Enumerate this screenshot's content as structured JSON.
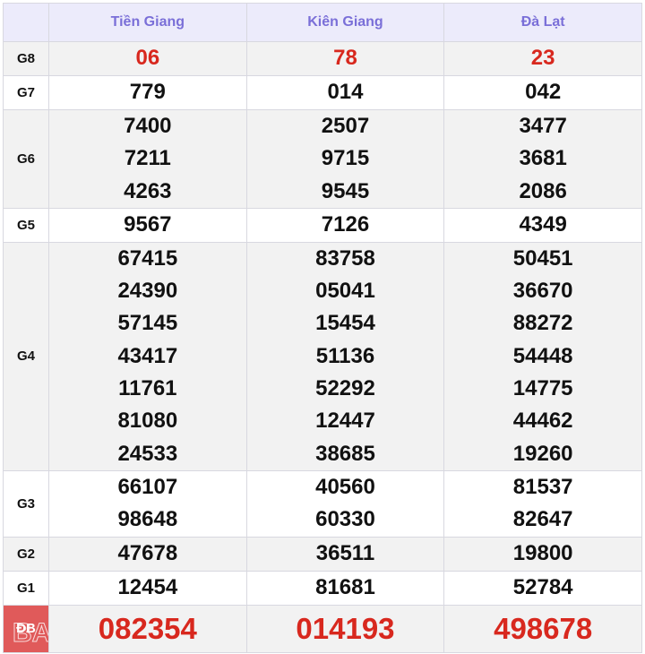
{
  "provinces": [
    "Tiền Giang",
    "Kiên Giang",
    "Đà Lạt"
  ],
  "rows": [
    {
      "label": "G8",
      "values": [
        [
          "06"
        ],
        [
          "78"
        ],
        [
          "23"
        ]
      ]
    },
    {
      "label": "G7",
      "values": [
        [
          "779"
        ],
        [
          "014"
        ],
        [
          "042"
        ]
      ]
    },
    {
      "label": "G6",
      "values": [
        [
          "7400",
          "7211",
          "4263"
        ],
        [
          "2507",
          "9715",
          "9545"
        ],
        [
          "3477",
          "3681",
          "2086"
        ]
      ]
    },
    {
      "label": "G5",
      "values": [
        [
          "9567"
        ],
        [
          "7126"
        ],
        [
          "4349"
        ]
      ]
    },
    {
      "label": "G4",
      "values": [
        [
          "67415",
          "24390",
          "57145",
          "43417",
          "11761",
          "81080",
          "24533"
        ],
        [
          "83758",
          "05041",
          "15454",
          "51136",
          "52292",
          "12447",
          "38685"
        ],
        [
          "50451",
          "36670",
          "88272",
          "54448",
          "14775",
          "44462",
          "19260"
        ]
      ]
    },
    {
      "label": "G3",
      "values": [
        [
          "66107",
          "98648"
        ],
        [
          "40560",
          "60330"
        ],
        [
          "81537",
          "82647"
        ]
      ]
    },
    {
      "label": "G2",
      "values": [
        [
          "47678"
        ],
        [
          "36511"
        ],
        [
          "19800"
        ]
      ]
    },
    {
      "label": "G1",
      "values": [
        [
          "12454"
        ],
        [
          "81681"
        ],
        [
          "52784"
        ]
      ]
    },
    {
      "label": "ĐB",
      "values": [
        [
          "082354"
        ],
        [
          "014193"
        ],
        [
          "498678"
        ]
      ]
    }
  ],
  "watermark": "BA",
  "colors": {
    "header_text": "#7a6fd8",
    "header_bg": "#ecebfb",
    "highlight": "#d8281e",
    "db_label_bg": "#e05a5a"
  }
}
